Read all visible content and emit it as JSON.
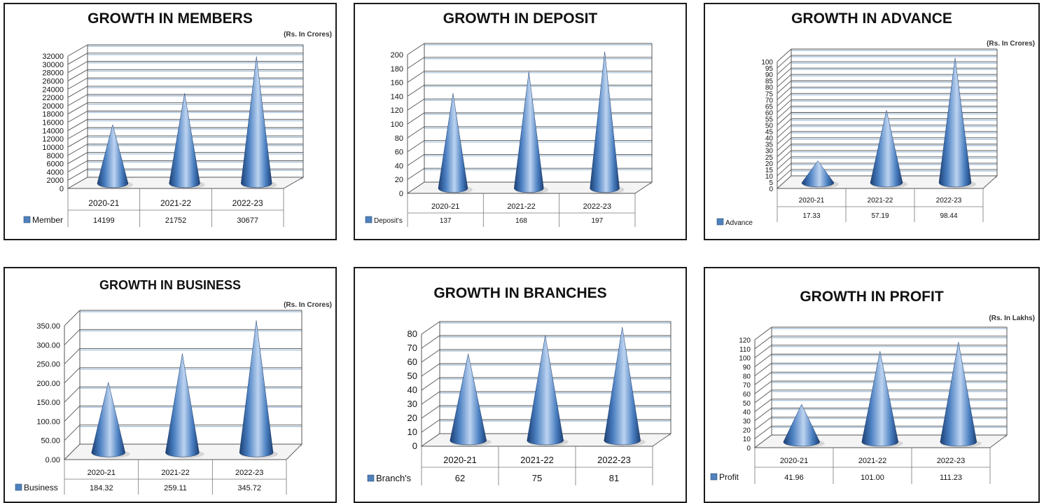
{
  "colors": {
    "cone_light": "#bcd3f0",
    "cone_mid": "#4a7fc1",
    "cone_dark": "#1c3f73",
    "legend": "#4f81bd",
    "grid": "#555555",
    "grid_shadow": "#7aa0c8"
  },
  "chart_data": [
    {
      "type": "bar",
      "title": "GROWTH IN MEMBERS",
      "subtitle": "",
      "categories": [
        "2020-21",
        "2021-22",
        "2022-23"
      ],
      "series": [
        {
          "name": "Member",
          "values": [
            14199,
            21752,
            30677
          ]
        }
      ],
      "value_labels": [
        "14199",
        "21752",
        "30677"
      ],
      "ylim": [
        0,
        32000
      ],
      "yticks": [
        "0",
        "2000",
        "4000",
        "6000",
        "8000",
        "10000",
        "12000",
        "14000",
        "16000",
        "18000",
        "20000",
        "22000",
        "24000",
        "26000",
        "28000",
        "30000",
        "32000"
      ]
    },
    {
      "type": "bar",
      "title": "GROWTH IN DEPOSIT",
      "subtitle": "(Rs. In Crores)",
      "categories": [
        "2020-21",
        "2021-22",
        "2022-23"
      ],
      "series": [
        {
          "name": "Deposit's",
          "values": [
            137,
            168,
            197
          ]
        }
      ],
      "value_labels": [
        "137",
        "168",
        "197"
      ],
      "ylim": [
        0,
        200
      ],
      "yticks": [
        "0",
        "20",
        "40",
        "60",
        "80",
        "100",
        "120",
        "140",
        "160",
        "180",
        "200"
      ]
    },
    {
      "type": "bar",
      "title": "GROWTH IN ADVANCE",
      "subtitle": "(Rs. In Crores)",
      "categories": [
        "2020-21",
        "2021-22",
        "2022-23"
      ],
      "series": [
        {
          "name": "Advance",
          "values": [
            17.33,
            57.19,
            98.44
          ]
        }
      ],
      "value_labels": [
        "17.33",
        "57.19",
        "98.44"
      ],
      "ylim": [
        0,
        100
      ],
      "yticks": [
        "0",
        "5",
        "10",
        "15",
        "20",
        "25",
        "30",
        "35",
        "40",
        "45",
        "50",
        "55",
        "60",
        "65",
        "70",
        "75",
        "80",
        "85",
        "90",
        "95",
        "100"
      ]
    },
    {
      "type": "bar",
      "title": "GROWTH IN BUSINESS",
      "subtitle": "(Rs. In Crores)",
      "categories": [
        "2020-21",
        "2021-22",
        "2022-23"
      ],
      "series": [
        {
          "name": "Business",
          "values": [
            184.32,
            259.11,
            345.72
          ]
        }
      ],
      "value_labels": [
        "184.32",
        "259.11",
        "345.72"
      ],
      "ylim": [
        0,
        350
      ],
      "yticks": [
        "0.00",
        "50.00",
        "100.00",
        "150.00",
        "200.00",
        "250.00",
        "300.00",
        "350.00"
      ]
    },
    {
      "type": "bar",
      "title": "GROWTH IN BRANCHES",
      "subtitle": "",
      "categories": [
        "2020-21",
        "2021-22",
        "2022-23"
      ],
      "series": [
        {
          "name": "Branch's",
          "values": [
            62,
            75,
            81
          ]
        }
      ],
      "value_labels": [
        "62",
        "75",
        "81"
      ],
      "ylim": [
        0,
        80
      ],
      "yticks": [
        "0",
        "10",
        "20",
        "30",
        "40",
        "50",
        "60",
        "70",
        "80"
      ]
    },
    {
      "type": "bar",
      "title": "GROWTH IN PROFIT",
      "subtitle": "(Rs. In Lakhs)",
      "categories": [
        "2020-21",
        "2021-22",
        "2022-23"
      ],
      "series": [
        {
          "name": "Profit",
          "values": [
            41.96,
            101.0,
            111.23
          ]
        }
      ],
      "value_labels": [
        "41.96",
        "101.00",
        "111.23"
      ],
      "ylim": [
        0,
        120
      ],
      "yticks": [
        "0",
        "10",
        "20",
        "30",
        "40",
        "50",
        "60",
        "70",
        "80",
        "90",
        "100",
        "110",
        "120"
      ]
    }
  ]
}
